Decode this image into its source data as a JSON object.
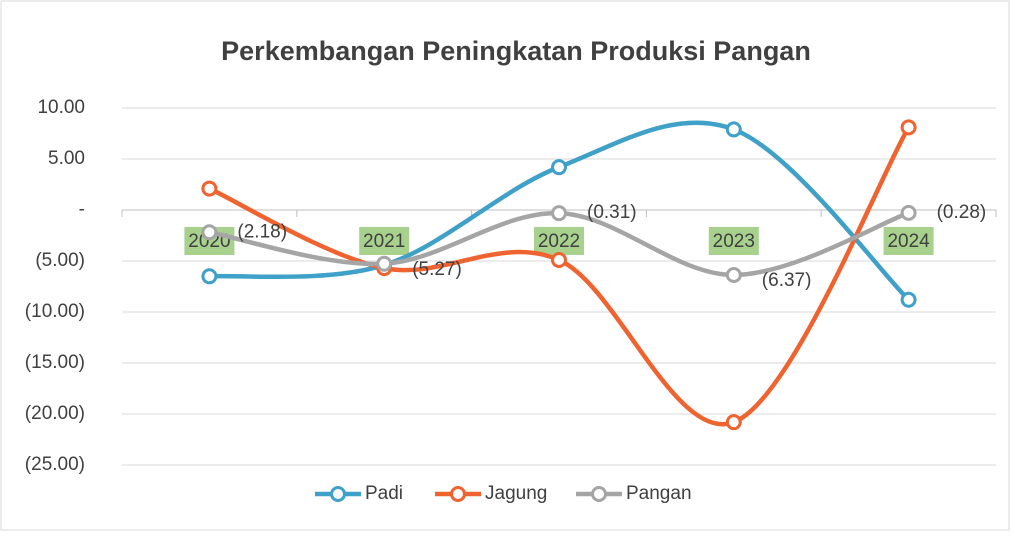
{
  "chart_data": {
    "type": "line",
    "title": "Perkembangan Peningkatan Produksi Pangan",
    "categories": [
      "2020",
      "2021",
      "2022",
      "2023",
      "2024"
    ],
    "series": [
      {
        "name": "Padi",
        "color": "#3fa0c8",
        "values": [
          -6.5,
          -5.4,
          4.2,
          7.9,
          -8.8
        ]
      },
      {
        "name": "Jagung",
        "color": "#ee6330",
        "values": [
          2.1,
          -5.7,
          -4.9,
          -20.8,
          8.1
        ]
      },
      {
        "name": "Pangan",
        "color": "#a5a5a5",
        "values": [
          -2.18,
          -5.27,
          -0.31,
          -6.37,
          -0.28
        ],
        "value_labels": [
          "(2.18)",
          "(5.27)",
          "(0.31)",
          "(6.37)",
          "(0.28)"
        ]
      }
    ],
    "ylim": [
      -25,
      10
    ],
    "yticks": [
      {
        "value": 10,
        "label": "10.00"
      },
      {
        "value": 5,
        "label": "5.00"
      },
      {
        "value": 0,
        "label": "-"
      },
      {
        "value": -5,
        "label": "(5.00)"
      },
      {
        "value": -10,
        "label": "(10.00)"
      },
      {
        "value": -15,
        "label": "(15.00)"
      },
      {
        "value": -20,
        "label": "(20.00)"
      },
      {
        "value": -25,
        "label": "(25.00)"
      }
    ],
    "grid": true,
    "legend": "bottom"
  }
}
